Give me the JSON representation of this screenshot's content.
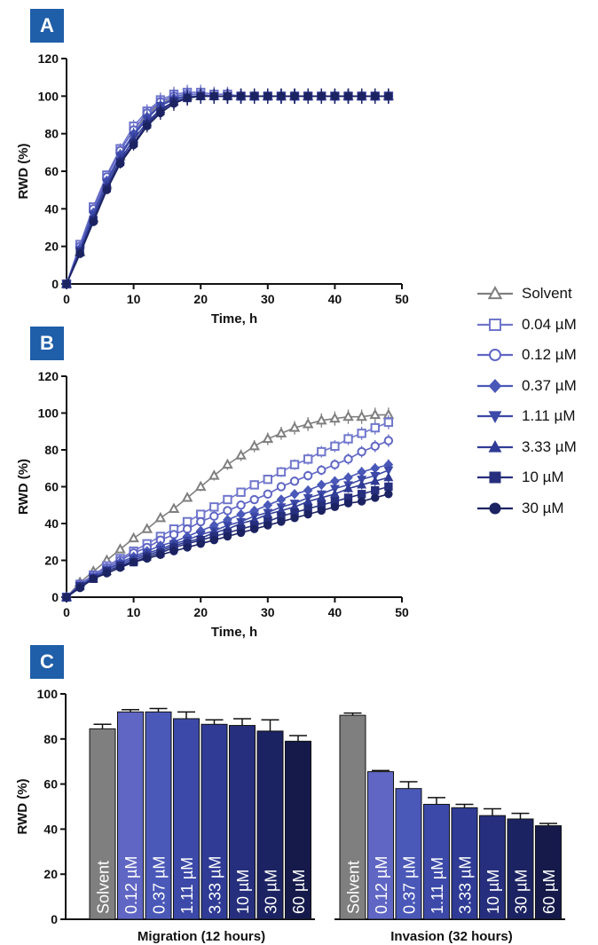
{
  "panel_labels": [
    "A",
    "B",
    "C"
  ],
  "colors": {
    "solvent": "#7f7f7f",
    "c004": "#7077cc",
    "c012": "#6066c4",
    "c037": "#4a58b8",
    "c111": "#3c49a8",
    "c333": "#2f3b95",
    "c10": "#262f7d",
    "c30": "#1c2362",
    "c60": "#151a4a"
  },
  "legend": [
    {
      "label": "Solvent",
      "marker": "triangle-open",
      "color": "#7f7f7f"
    },
    {
      "label": "0.04 µM",
      "marker": "square-open",
      "color": "#7077cc"
    },
    {
      "label": "0.12 µM",
      "marker": "circle-open",
      "color": "#6066c4"
    },
    {
      "label": "0.37 µM",
      "marker": "diamond",
      "color": "#4a58b8"
    },
    {
      "label": "1.11 µM",
      "marker": "triangle-down",
      "color": "#3c49a8"
    },
    {
      "label": "3.33 µM",
      "marker": "triangle",
      "color": "#2f3b95"
    },
    {
      "label": "10 µM",
      "marker": "square",
      "color": "#262f7d"
    },
    {
      "label": "30 µM",
      "marker": "circle",
      "color": "#1c2362"
    }
  ],
  "chart_data": [
    {
      "panel": "A",
      "type": "line",
      "xlabel": "Time, h",
      "ylabel": "RWD (%)",
      "xlim": [
        0,
        50
      ],
      "ylim": [
        0,
        120
      ],
      "xticks": [
        0,
        10,
        20,
        30,
        40,
        50
      ],
      "yticks": [
        0,
        20,
        40,
        60,
        80,
        100,
        120
      ],
      "x": [
        0,
        2,
        4,
        6,
        8,
        10,
        12,
        14,
        16,
        18,
        20,
        22,
        24,
        26,
        28,
        30,
        32,
        34,
        36,
        38,
        40,
        42,
        44,
        46,
        48
      ],
      "series": [
        {
          "name": "Solvent",
          "marker": "triangle-open",
          "color": "#7f7f7f",
          "values": [
            0,
            17,
            35,
            53,
            68,
            80,
            90,
            96,
            99,
            100,
            100,
            100,
            100,
            100,
            100,
            100,
            100,
            100,
            100,
            100,
            100,
            100,
            100,
            100,
            100
          ]
        },
        {
          "name": "0.04 µM",
          "marker": "square-open",
          "color": "#7077cc",
          "values": [
            0,
            21,
            41,
            58,
            72,
            84,
            92,
            98,
            101,
            102,
            102,
            101,
            101,
            100,
            100,
            100,
            100,
            100,
            100,
            100,
            100,
            100,
            100,
            100,
            100
          ]
        },
        {
          "name": "0.12 µM",
          "marker": "circle-open",
          "color": "#6066c4",
          "values": [
            0,
            20,
            40,
            57,
            71,
            82,
            91,
            97,
            100,
            101,
            101,
            100,
            100,
            100,
            100,
            100,
            100,
            100,
            100,
            100,
            100,
            100,
            100,
            100,
            100
          ]
        },
        {
          "name": "0.37 µM",
          "marker": "diamond",
          "color": "#4a58b8",
          "values": [
            0,
            19,
            38,
            55,
            69,
            80,
            89,
            95,
            99,
            100,
            100,
            100,
            100,
            100,
            100,
            100,
            100,
            100,
            100,
            100,
            100,
            100,
            100,
            100,
            100
          ]
        },
        {
          "name": "1.11 µM",
          "marker": "triangle-down",
          "color": "#3c49a8",
          "values": [
            0,
            18,
            37,
            54,
            68,
            79,
            88,
            95,
            98,
            100,
            100,
            100,
            100,
            100,
            100,
            100,
            100,
            100,
            100,
            100,
            100,
            100,
            100,
            100,
            100
          ]
        },
        {
          "name": "3.33 µM",
          "marker": "triangle",
          "color": "#2f3b95",
          "values": [
            0,
            17,
            35,
            52,
            66,
            77,
            86,
            93,
            97,
            99,
            100,
            100,
            100,
            100,
            100,
            100,
            100,
            100,
            100,
            100,
            100,
            100,
            100,
            100,
            100
          ]
        },
        {
          "name": "10 µM",
          "marker": "square",
          "color": "#262f7d",
          "values": [
            0,
            17,
            34,
            51,
            65,
            75,
            85,
            92,
            97,
            99,
            100,
            100,
            100,
            100,
            100,
            100,
            100,
            100,
            100,
            100,
            100,
            100,
            100,
            100,
            100
          ]
        },
        {
          "name": "30 µM",
          "marker": "circle",
          "color": "#1c2362",
          "values": [
            0,
            16,
            33,
            50,
            64,
            74,
            84,
            91,
            96,
            99,
            100,
            100,
            100,
            100,
            100,
            100,
            100,
            100,
            100,
            100,
            100,
            100,
            100,
            100,
            100
          ]
        }
      ]
    },
    {
      "panel": "B",
      "type": "line",
      "xlabel": "Time, h",
      "ylabel": "RWD (%)",
      "xlim": [
        0,
        50
      ],
      "ylim": [
        0,
        120
      ],
      "xticks": [
        0,
        10,
        20,
        30,
        40,
        50
      ],
      "yticks": [
        0,
        20,
        40,
        60,
        80,
        100,
        120
      ],
      "x": [
        0,
        2,
        4,
        6,
        8,
        10,
        12,
        14,
        16,
        18,
        20,
        22,
        24,
        26,
        28,
        30,
        32,
        34,
        36,
        38,
        40,
        42,
        44,
        46,
        48
      ],
      "series": [
        {
          "name": "Solvent",
          "marker": "triangle-open",
          "color": "#7f7f7f",
          "values": [
            0,
            8,
            14,
            20,
            26,
            32,
            37,
            43,
            48,
            54,
            60,
            66,
            72,
            77,
            82,
            86,
            89,
            92,
            94,
            96,
            97,
            98,
            98,
            99,
            99
          ]
        },
        {
          "name": "0.04 µM",
          "marker": "square-open",
          "color": "#7077cc",
          "values": [
            0,
            7,
            12,
            17,
            21,
            25,
            29,
            33,
            37,
            41,
            45,
            49,
            53,
            57,
            61,
            64,
            68,
            72,
            75,
            79,
            82,
            86,
            89,
            92,
            95
          ]
        },
        {
          "name": "0.12 µM",
          "marker": "circle-open",
          "color": "#6066c4",
          "values": [
            0,
            7,
            12,
            16,
            20,
            24,
            27,
            31,
            34,
            37,
            41,
            44,
            47,
            50,
            53,
            56,
            60,
            63,
            66,
            69,
            72,
            75,
            79,
            82,
            85
          ]
        },
        {
          "name": "0.37 µM",
          "marker": "diamond",
          "color": "#4a58b8",
          "values": [
            0,
            6,
            11,
            15,
            19,
            22,
            25,
            28,
            30,
            33,
            36,
            39,
            42,
            45,
            47,
            50,
            53,
            56,
            58,
            61,
            63,
            65,
            68,
            70,
            72
          ]
        },
        {
          "name": "1.11 µM",
          "marker": "triangle-down",
          "color": "#3c49a8",
          "values": [
            0,
            6,
            11,
            15,
            18,
            21,
            24,
            26,
            29,
            31,
            34,
            36,
            39,
            41,
            44,
            46,
            49,
            51,
            54,
            56,
            59,
            61,
            64,
            66,
            69
          ]
        },
        {
          "name": "3.33 µM",
          "marker": "triangle",
          "color": "#2f3b95",
          "values": [
            0,
            6,
            10,
            14,
            17,
            20,
            23,
            25,
            28,
            30,
            32,
            35,
            37,
            40,
            42,
            45,
            47,
            49,
            52,
            54,
            56,
            59,
            61,
            63,
            65
          ]
        },
        {
          "name": "10 µM",
          "marker": "square",
          "color": "#262f7d",
          "values": [
            0,
            6,
            10,
            14,
            17,
            19,
            22,
            24,
            27,
            29,
            31,
            33,
            35,
            37,
            39,
            41,
            44,
            46,
            48,
            50,
            52,
            54,
            56,
            58,
            60
          ]
        },
        {
          "name": "30 µM",
          "marker": "circle",
          "color": "#1c2362",
          "values": [
            0,
            5,
            10,
            13,
            16,
            19,
            21,
            23,
            25,
            27,
            29,
            31,
            33,
            35,
            37,
            39,
            41,
            43,
            45,
            47,
            49,
            51,
            52,
            54,
            56
          ]
        }
      ]
    },
    {
      "panel": "C",
      "type": "bar",
      "ylabel": "RWD (%)",
      "ylim": [
        0,
        100
      ],
      "yticks": [
        0,
        20,
        40,
        60,
        80,
        100
      ],
      "groups": [
        {
          "name": "Migration (12 hours)",
          "categories": [
            "Solvent",
            "0.12 µM",
            "0.37 µM",
            "1.11 µM",
            "3.33 µM",
            "10 µM",
            "30 µM",
            "60 µM"
          ],
          "values": [
            84.5,
            92,
            92,
            89,
            86.5,
            86,
            83.5,
            79
          ],
          "errors": [
            2,
            1,
            1.5,
            3,
            2,
            3,
            5,
            2.5
          ]
        },
        {
          "name": "Invasion (32 hours)",
          "categories": [
            "Solvent",
            "0.12 µM",
            "0.37 µM",
            "1.11 µM",
            "3.33 µM",
            "10 µM",
            "30 µM",
            "60 µM"
          ],
          "values": [
            90.5,
            65.5,
            58,
            51,
            49.5,
            46,
            44.5,
            41.5
          ],
          "errors": [
            1,
            0.5,
            3,
            3,
            1.5,
            3,
            2.5,
            1
          ]
        }
      ],
      "bar_colors": [
        "#7f7f7f",
        "#6066c4",
        "#4a58b8",
        "#3c49a8",
        "#2f3b95",
        "#262f7d",
        "#1c2362",
        "#151a4a"
      ]
    }
  ]
}
